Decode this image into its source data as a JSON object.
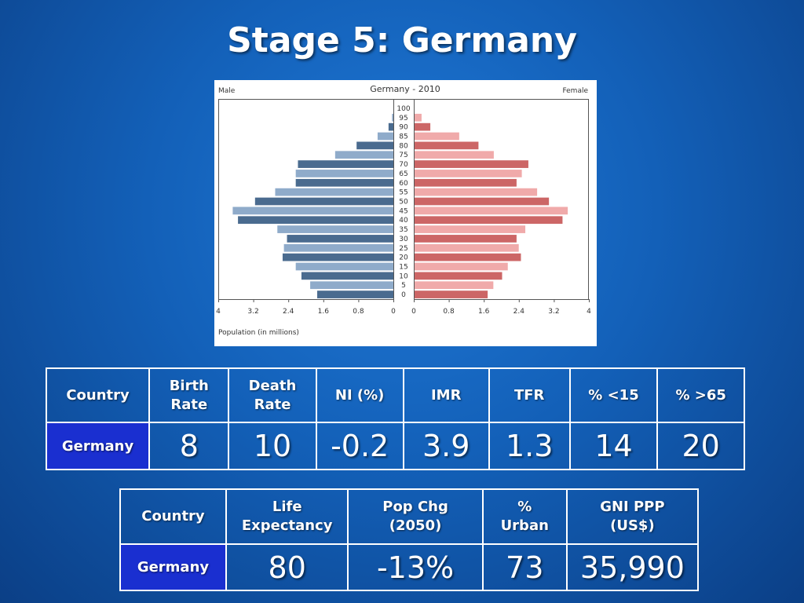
{
  "slide": {
    "title": "Stage 5: Germany"
  },
  "chart_data": {
    "type": "bar",
    "subtype": "population-pyramid",
    "title": "Germany - 2010",
    "left_label": "Male",
    "right_label": "Female",
    "xlabel": "Population (in millions)",
    "xlim": [
      0,
      4
    ],
    "x_ticks": [
      "4",
      "3.2",
      "2.4",
      "1.6",
      "0.8",
      "0",
      "0",
      "0.8",
      "1.6",
      "2.4",
      "3.2",
      "4"
    ],
    "categories": [
      "100",
      "95",
      "90",
      "85",
      "80",
      "75",
      "70",
      "65",
      "60",
      "55",
      "50",
      "45",
      "40",
      "35",
      "30",
      "25",
      "20",
      "15",
      "10",
      "5",
      "0"
    ],
    "series": [
      {
        "name": "Male",
        "values": [
          0.0,
          0.03,
          0.11,
          0.36,
          0.84,
          1.33,
          2.18,
          2.23,
          2.23,
          2.7,
          3.16,
          3.67,
          3.55,
          2.65,
          2.43,
          2.5,
          2.53,
          2.23,
          2.1,
          1.9,
          1.74
        ]
      },
      {
        "name": "Female",
        "values": [
          0.0,
          0.16,
          0.36,
          1.02,
          1.46,
          1.81,
          2.6,
          2.45,
          2.33,
          2.8,
          3.07,
          3.5,
          3.38,
          2.53,
          2.33,
          2.38,
          2.43,
          2.13,
          2.0,
          1.8,
          1.67
        ]
      }
    ],
    "colors": {
      "male_dark": "#4a6b8f",
      "male_light": "#8fabca",
      "female_dark": "#cc6666",
      "female_light": "#f0aaaa"
    }
  },
  "table1": {
    "headers": [
      "Country",
      "Birth Rate",
      "Death Rate",
      "NI (%)",
      "IMR",
      "TFR",
      "% <15",
      "% >65"
    ],
    "row_label": "Germany",
    "values": [
      "8",
      "10",
      "-0.2",
      "3.9",
      "1.3",
      "14",
      "20"
    ]
  },
  "table2": {
    "headers": [
      "Country",
      "Life Expectancy",
      "Pop Chg (2050)",
      "% Urban",
      "GNI PPP (US$)"
    ],
    "row_label": "Germany",
    "values": [
      "80",
      "-13%",
      "73",
      "35,990"
    ]
  },
  "colors": {
    "row_label_bg": "#1a2fd0",
    "background": "#1565c0"
  }
}
